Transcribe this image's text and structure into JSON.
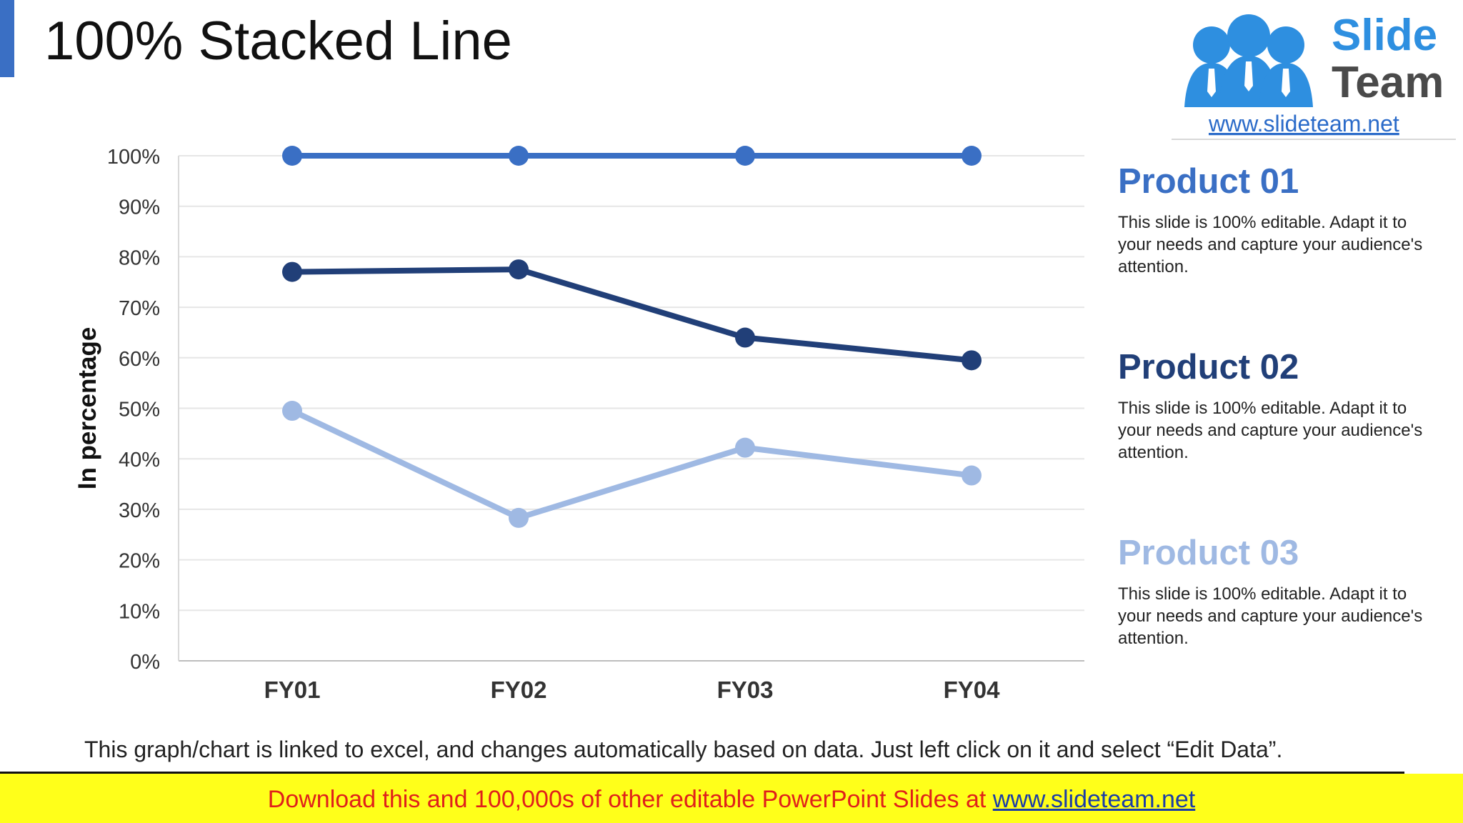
{
  "slide": {
    "title": "100% Stacked Line",
    "footnote": "This graph/chart is linked to excel, and changes automatically based on data. Just left click on it and select “Edit Data”."
  },
  "logo": {
    "word1": "Slide",
    "word2": "Team",
    "url": "www.slideteam.net",
    "colors": {
      "blue": "#2e8fe0",
      "gray": "#4a4a4a",
      "link": "#2b6bc9"
    }
  },
  "products": [
    {
      "title": "Product 01",
      "text": "This slide is 100% editable. Adapt it to your needs and capture your audience's attention.",
      "color": "#3a6fc4"
    },
    {
      "title": "Product 02",
      "text": "This slide is 100% editable. Adapt it to your needs and capture your audience's attention.",
      "color": "#213f78"
    },
    {
      "title": "Product 03",
      "text": "This slide is 100% editable. Adapt it to your needs and capture your audience's attention.",
      "color": "#9fb9e3"
    }
  ],
  "banner": {
    "text": "Download this and 100,000s of other editable PowerPoint Slides at ",
    "link": "www.slideteam.net"
  },
  "chart_data": {
    "type": "line",
    "title": "",
    "xlabel": "",
    "ylabel": "In percentage",
    "categories": [
      "FY01",
      "FY02",
      "FY03",
      "FY04"
    ],
    "y_ticks": [
      "0%",
      "10%",
      "20%",
      "30%",
      "40%",
      "50%",
      "60%",
      "70%",
      "80%",
      "90%",
      "100%"
    ],
    "ylim": [
      0,
      100
    ],
    "grid": true,
    "legend": "none",
    "series": [
      {
        "values": [
          100,
          100,
          100,
          100
        ],
        "color": "#3a6fc4"
      },
      {
        "values": [
          77,
          77.5,
          64,
          59.5
        ],
        "color": "#213f78"
      },
      {
        "values": [
          49.5,
          28.3,
          42.2,
          36.7
        ],
        "color": "#9fb9e3"
      }
    ]
  }
}
